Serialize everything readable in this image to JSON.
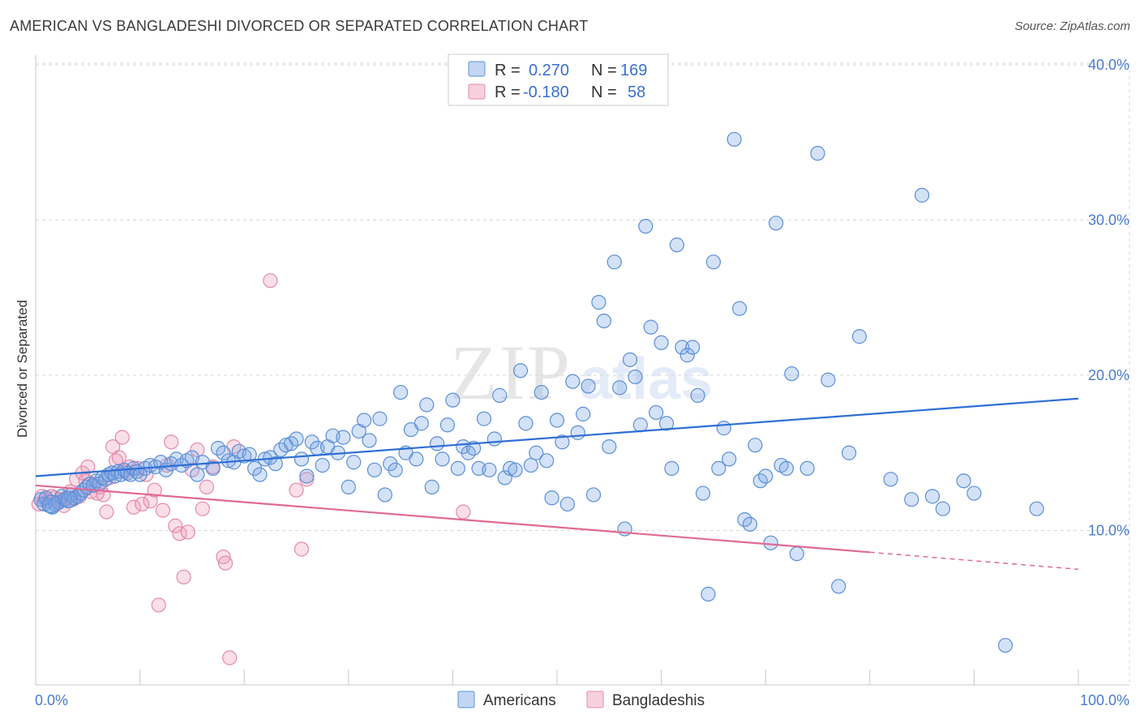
{
  "header": {
    "title": "AMERICAN VS BANGLADESHI DIVORCED OR SEPARATED CORRELATION CHART",
    "source": "Source: ZipAtlas.com"
  },
  "watermark": {
    "zip": "ZIP",
    "atlas": "atlas"
  },
  "colors": {
    "americans": "#5b8fd8",
    "americans_fill": "rgba(120,165,230,0.32)",
    "americans_line": "#2e6fd3",
    "bangladeshis": "#e48aa8",
    "bangladeshis_fill": "rgba(240,150,180,0.30)",
    "bangladeshis_line": "#e06a95",
    "axis_text": "#4a7bd0",
    "grid": "#d8d8d8"
  },
  "legend": {
    "rows": [
      {
        "r_label": "R =",
        "r_value": "0.270",
        "n_label": "N =",
        "n_value": "169"
      },
      {
        "r_label": "R =",
        "r_value": "-0.180",
        "n_label": "N =",
        "n_value": "58"
      }
    ]
  },
  "chart_data": {
    "type": "scatter",
    "title": "AMERICAN VS BANGLADESHI DIVORCED OR SEPARATED CORRELATION CHART",
    "xlabel": "",
    "ylabel": "Divorced or Separated",
    "xlim": [
      0,
      100
    ],
    "ylim": [
      0,
      41
    ],
    "x_tick_labels": [
      "0.0%",
      "100.0%"
    ],
    "y_ticks": [
      10,
      20,
      30,
      40
    ],
    "y_tick_labels": [
      "10.0%",
      "20.0%",
      "30.0%",
      "40.0%"
    ],
    "grid": true,
    "legend_position": "top-center",
    "bottom_legend": [
      "Americans",
      "Bangladeshis"
    ],
    "series": [
      {
        "name": "Americans",
        "R": 0.27,
        "N": 169,
        "trend": {
          "x": [
            0,
            100
          ],
          "y": [
            13.5,
            18.5
          ],
          "style": "solid"
        },
        "points": [
          [
            0.5,
            12.0
          ],
          [
            0.8,
            11.7
          ],
          [
            1.0,
            12.1
          ],
          [
            1.3,
            11.6
          ],
          [
            1.6,
            11.5
          ],
          [
            1.9,
            11.7
          ],
          [
            2.2,
            11.8
          ],
          [
            2.5,
            12.2
          ],
          [
            2.8,
            12.0
          ],
          [
            3.1,
            11.9
          ],
          [
            3.4,
            12.3
          ],
          [
            3.7,
            12.1
          ],
          [
            4.0,
            12.2
          ],
          [
            4.3,
            12.4
          ],
          [
            4.6,
            12.6
          ],
          [
            4.9,
            12.8
          ],
          [
            5.2,
            13.0
          ],
          [
            5.5,
            12.9
          ],
          [
            5.8,
            13.2
          ],
          [
            6.1,
            13.0
          ],
          [
            6.4,
            13.4
          ],
          [
            6.7,
            13.3
          ],
          [
            7.0,
            13.6
          ],
          [
            7.3,
            13.7
          ],
          [
            7.6,
            13.5
          ],
          [
            7.9,
            13.8
          ],
          [
            8.2,
            13.6
          ],
          [
            8.5,
            13.9
          ],
          [
            8.8,
            13.7
          ],
          [
            9.1,
            13.6
          ],
          [
            9.4,
            14.0
          ],
          [
            9.7,
            13.8
          ],
          [
            10.0,
            13.6
          ],
          [
            10.5,
            14.0
          ],
          [
            11.0,
            14.2
          ],
          [
            11.5,
            14.1
          ],
          [
            12.0,
            14.4
          ],
          [
            12.5,
            13.9
          ],
          [
            13.0,
            14.3
          ],
          [
            13.5,
            14.6
          ],
          [
            14.0,
            14.2
          ],
          [
            14.5,
            14.5
          ],
          [
            15.0,
            14.7
          ],
          [
            15.5,
            13.6
          ],
          [
            16.0,
            14.4
          ],
          [
            17.0,
            14.0
          ],
          [
            17.5,
            15.3
          ],
          [
            18.0,
            15.0
          ],
          [
            18.5,
            14.5
          ],
          [
            19.0,
            14.4
          ],
          [
            19.5,
            15.1
          ],
          [
            20.0,
            14.8
          ],
          [
            20.5,
            14.9
          ],
          [
            21.0,
            14.0
          ],
          [
            21.5,
            13.6
          ],
          [
            22.0,
            14.6
          ],
          [
            22.5,
            14.7
          ],
          [
            23.0,
            14.3
          ],
          [
            23.5,
            15.2
          ],
          [
            24.0,
            15.5
          ],
          [
            24.5,
            15.6
          ],
          [
            25.0,
            15.9
          ],
          [
            25.5,
            14.6
          ],
          [
            26.0,
            13.5
          ],
          [
            26.5,
            15.7
          ],
          [
            27.0,
            15.3
          ],
          [
            27.5,
            14.2
          ],
          [
            28.0,
            15.4
          ],
          [
            28.5,
            16.1
          ],
          [
            29.0,
            15.0
          ],
          [
            29.5,
            16.0
          ],
          [
            30.0,
            12.8
          ],
          [
            30.5,
            14.4
          ],
          [
            31.0,
            16.4
          ],
          [
            31.5,
            17.1
          ],
          [
            32.0,
            15.8
          ],
          [
            32.5,
            13.9
          ],
          [
            33.0,
            17.2
          ],
          [
            33.5,
            12.3
          ],
          [
            34.0,
            14.3
          ],
          [
            34.5,
            13.9
          ],
          [
            35.0,
            18.9
          ],
          [
            35.5,
            15.0
          ],
          [
            36.0,
            16.5
          ],
          [
            36.5,
            14.6
          ],
          [
            37.0,
            16.9
          ],
          [
            37.5,
            18.1
          ],
          [
            38.0,
            12.8
          ],
          [
            38.5,
            15.6
          ],
          [
            39.0,
            14.6
          ],
          [
            39.5,
            16.8
          ],
          [
            40.0,
            18.4
          ],
          [
            40.5,
            14.0
          ],
          [
            41.0,
            15.4
          ],
          [
            41.5,
            15.0
          ],
          [
            42.0,
            15.3
          ],
          [
            42.5,
            14.0
          ],
          [
            43.0,
            17.2
          ],
          [
            43.5,
            13.9
          ],
          [
            44.0,
            15.9
          ],
          [
            44.5,
            18.7
          ],
          [
            45.0,
            13.4
          ],
          [
            45.5,
            14.0
          ],
          [
            46.0,
            13.9
          ],
          [
            46.5,
            20.3
          ],
          [
            47.0,
            16.9
          ],
          [
            47.5,
            14.2
          ],
          [
            48.0,
            15.0
          ],
          [
            48.5,
            18.9
          ],
          [
            49.0,
            14.5
          ],
          [
            49.5,
            12.1
          ],
          [
            50.0,
            17.1
          ],
          [
            50.5,
            15.7
          ],
          [
            51.0,
            11.7
          ],
          [
            51.5,
            19.6
          ],
          [
            52.0,
            16.3
          ],
          [
            52.5,
            17.5
          ],
          [
            53.0,
            19.3
          ],
          [
            53.5,
            12.3
          ],
          [
            54.0,
            24.7
          ],
          [
            54.5,
            23.5
          ],
          [
            55.0,
            15.4
          ],
          [
            55.5,
            27.3
          ],
          [
            56.0,
            19.2
          ],
          [
            56.5,
            10.1
          ],
          [
            57.0,
            21.0
          ],
          [
            57.5,
            19.9
          ],
          [
            58.0,
            16.8
          ],
          [
            58.5,
            29.6
          ],
          [
            59.0,
            23.1
          ],
          [
            59.5,
            17.6
          ],
          [
            60.0,
            22.1
          ],
          [
            60.5,
            16.9
          ],
          [
            61.0,
            14.0
          ],
          [
            61.5,
            28.4
          ],
          [
            62.0,
            21.8
          ],
          [
            62.5,
            21.3
          ],
          [
            63.0,
            21.8
          ],
          [
            63.5,
            18.7
          ],
          [
            64.0,
            12.4
          ],
          [
            64.5,
            5.9
          ],
          [
            65.0,
            27.3
          ],
          [
            65.5,
            14.0
          ],
          [
            66.0,
            16.6
          ],
          [
            66.5,
            14.6
          ],
          [
            67.0,
            35.2
          ],
          [
            67.5,
            24.3
          ],
          [
            68.0,
            10.7
          ],
          [
            68.5,
            10.4
          ],
          [
            69.0,
            15.5
          ],
          [
            69.5,
            13.2
          ],
          [
            70.0,
            13.5
          ],
          [
            70.5,
            9.2
          ],
          [
            71.0,
            29.8
          ],
          [
            71.5,
            14.2
          ],
          [
            72.0,
            14.0
          ],
          [
            72.5,
            20.1
          ],
          [
            73.0,
            8.5
          ],
          [
            74.0,
            14.0
          ],
          [
            75.0,
            34.3
          ],
          [
            76.0,
            19.7
          ],
          [
            77.0,
            6.4
          ],
          [
            78.0,
            15.0
          ],
          [
            79.0,
            22.5
          ],
          [
            82.0,
            13.3
          ],
          [
            85.0,
            31.6
          ],
          [
            86.0,
            12.2
          ],
          [
            87.0,
            11.4
          ],
          [
            89.0,
            13.2
          ],
          [
            93.0,
            2.6
          ],
          [
            96.0,
            11.4
          ],
          [
            84.0,
            12.0
          ],
          [
            90.0,
            12.4
          ]
        ]
      },
      {
        "name": "Bangladeshis",
        "R": -0.18,
        "N": 58,
        "trend": {
          "x": [
            0,
            80
          ],
          "y": [
            12.9,
            8.6
          ],
          "style": "solid",
          "dashed_to": {
            "x": 100,
            "y": 7.5
          }
        },
        "points": [
          [
            0.3,
            11.7
          ],
          [
            0.6,
            12.2
          ],
          [
            0.9,
            12.0
          ],
          [
            1.2,
            11.9
          ],
          [
            1.5,
            12.2
          ],
          [
            1.8,
            12.1
          ],
          [
            2.1,
            11.8
          ],
          [
            2.4,
            12.0
          ],
          [
            2.7,
            11.6
          ],
          [
            3.0,
            12.1
          ],
          [
            3.3,
            12.5
          ],
          [
            3.6,
            12.0
          ],
          [
            3.9,
            13.3
          ],
          [
            4.2,
            12.2
          ],
          [
            4.5,
            13.7
          ],
          [
            4.8,
            13.2
          ],
          [
            5.0,
            14.1
          ],
          [
            5.3,
            12.5
          ],
          [
            5.6,
            13.0
          ],
          [
            5.9,
            12.4
          ],
          [
            6.2,
            12.8
          ],
          [
            6.5,
            12.3
          ],
          [
            6.8,
            11.2
          ],
          [
            7.1,
            13.4
          ],
          [
            7.4,
            15.4
          ],
          [
            7.7,
            14.5
          ],
          [
            8.0,
            14.7
          ],
          [
            8.3,
            16.0
          ],
          [
            8.6,
            13.8
          ],
          [
            9.0,
            14.1
          ],
          [
            9.4,
            11.5
          ],
          [
            9.8,
            14.0
          ],
          [
            10.2,
            11.7
          ],
          [
            10.6,
            13.6
          ],
          [
            11.0,
            11.9
          ],
          [
            11.4,
            12.6
          ],
          [
            11.8,
            5.2
          ],
          [
            12.2,
            11.3
          ],
          [
            12.6,
            14.2
          ],
          [
            13.0,
            15.7
          ],
          [
            13.4,
            10.3
          ],
          [
            13.8,
            9.8
          ],
          [
            14.2,
            7.0
          ],
          [
            14.6,
            9.9
          ],
          [
            15.0,
            13.9
          ],
          [
            15.5,
            15.2
          ],
          [
            16.0,
            11.4
          ],
          [
            16.4,
            12.8
          ],
          [
            17.0,
            14.1
          ],
          [
            18.0,
            8.3
          ],
          [
            18.2,
            7.9
          ],
          [
            18.6,
            1.8
          ],
          [
            19.0,
            15.4
          ],
          [
            22.5,
            26.1
          ],
          [
            25.0,
            12.6
          ],
          [
            25.5,
            8.8
          ],
          [
            26.0,
            13.3
          ],
          [
            41.0,
            11.2
          ]
        ]
      }
    ]
  }
}
